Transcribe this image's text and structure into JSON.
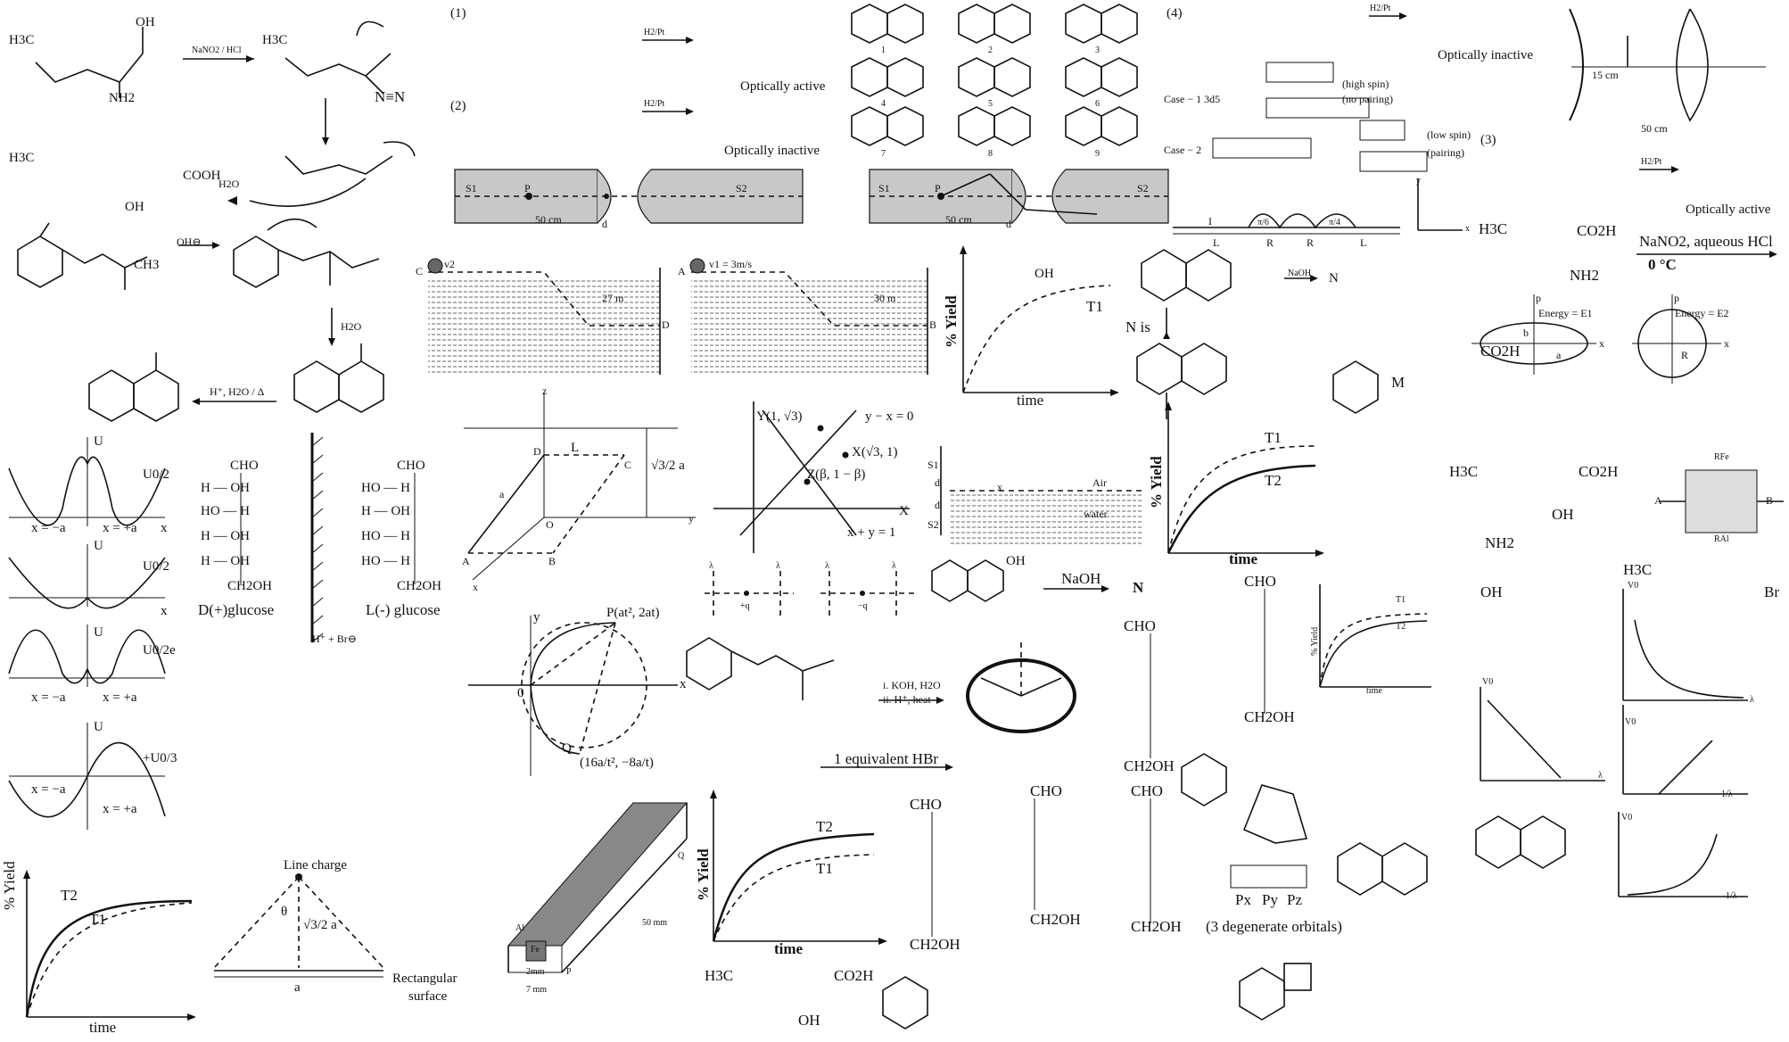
{
  "reactions": {
    "leucine_diazotization": {
      "reagent": "NaNO2 / HCl",
      "h2o": "H2O"
    },
    "robinson": {
      "oh": "OH⊖",
      "step": "H2O",
      "acid": "H⁺, H2O / Δ"
    },
    "numbered": [
      "(1)",
      "(2)",
      "(3)",
      "(4)"
    ],
    "h2pt": "H2/Pt",
    "optically_active": "Optically active",
    "optically_inactive": "Optically inactive",
    "naoh": "NaOH",
    "n_label": "N",
    "n_is": "N is",
    "naoh_big": "NaOH",
    "n_big": "N",
    "koh": "i. KOH, H2O",
    "hheat": "ii. H⁺, heat",
    "hbr": "1 equivalent HBr",
    "nano2": "NaNO2, aqueous HCl",
    "zero_c": "0 °C",
    "m_label": "M",
    "hbr_plus": "H⁺ + Br⊖"
  },
  "physics": {
    "potential_labels": [
      "U",
      "U0/2",
      "U",
      "U0/2",
      "U",
      "U0/2e",
      "U",
      "+U0/3"
    ],
    "x_neg": "x = −a",
    "x_pos": "x = +a",
    "x_axis": "x",
    "line_charge": "Line charge",
    "theta": "θ",
    "root3_2a": "√3/2 a",
    "a": "a",
    "rect_surface": [
      "Rectangular",
      "surface"
    ],
    "mirror_15": "15 cm",
    "mirror_50": "50 cm",
    "slab": {
      "s1": "S1",
      "s2": "S2",
      "p": "P",
      "d": "d",
      "dist": "50 cm"
    },
    "tank": {
      "c": "C",
      "d": "D",
      "a": "A",
      "b": "B",
      "v2": "v2",
      "v1": "v1 = 3m/s",
      "h1": "27 m",
      "h2": "30 m"
    },
    "cube": {
      "z": "z",
      "y": "y",
      "x": "x",
      "L": "L",
      "D": "D",
      "C": "C",
      "O": "O",
      "A": "A",
      "B": "B",
      "a": "a",
      "h": "√3/2 a"
    },
    "lines": {
      "Y": "Y(1, √3)",
      "yx0": "y − x = 0",
      "X": "X(√3, 1)",
      "Z": "Z(β, 1 − β)",
      "Xax": "X",
      "xy1": "x + y = 1"
    },
    "parabola": {
      "y": "y",
      "x": "x",
      "o": "0",
      "P": "P(at², 2at)",
      "Q": "Q",
      "Qcoord": "(16a/t², −8a/t)"
    },
    "charges": {
      "lam": "λ",
      "pq": "+q",
      "mq": "−q",
      "x": "x"
    },
    "wire": {
      "al": "Al",
      "fe": "Fe",
      "p": "P",
      "q": "Q",
      "mm50": "50 mm",
      "mm2": "2mm",
      "mm7": "7 mm"
    },
    "bar": {
      "s1": "S1",
      "s2": "S2",
      "d": "d",
      "x": "x",
      "air": "Air",
      "water": "water"
    },
    "circuit": {
      "a": "A",
      "b": "B",
      "rfe": "RFe",
      "ral": "RAl"
    },
    "wave": {
      "I": "I",
      "R": "R",
      "L": "L",
      "pi6": "π/6",
      "pi4": "π/4"
    },
    "ellipse": {
      "p": "p",
      "b": "b",
      "a": "a",
      "x": "x",
      "e1": "Energy = E1",
      "e2": "Energy = E2",
      "r": "R"
    },
    "axes_xy": {
      "y": "y",
      "x": "x"
    },
    "photo": {
      "v0": "V0",
      "lam": "λ",
      "inv": "1/λ"
    }
  },
  "spin": {
    "case1": "Case − 1  3d5",
    "case2": "Case − 2",
    "high": [
      "(high spin)",
      "(no pairing)"
    ],
    "low": [
      "(low spin)",
      "(pairing)"
    ],
    "orbitals": [
      "Px",
      "Py",
      "Pz"
    ],
    "degenerate": "(3 degenerate orbitals)"
  },
  "glucose": {
    "d_name": "D(+)glucose",
    "l_name": "L(-)  glucose",
    "cho": "CHO",
    "ch2oh": "CH2OH",
    "d_rows": [
      "H — OH",
      "HO — H",
      "H — OH",
      "H — OH"
    ],
    "l_rows": [
      "HO — H",
      "H — OH",
      "HO — H",
      "HO — H"
    ]
  },
  "yield_plots": {
    "ylabel": "% Yield",
    "xlabel": "time",
    "t1": "T1",
    "t2": "T2"
  },
  "naphthol": {
    "resonance": [
      "1",
      "2",
      "3",
      "4",
      "5",
      "6",
      "7",
      "8",
      "9"
    ]
  },
  "molecule_labels": {
    "ch3": "CH3",
    "h3c": "H3C",
    "oh": "OH",
    "nh2": "NH2",
    "co2h": "CO2H",
    "br": "Br",
    "h": "H",
    "o": "O",
    "cooh": "COOH",
    "n2": "N≡N"
  }
}
